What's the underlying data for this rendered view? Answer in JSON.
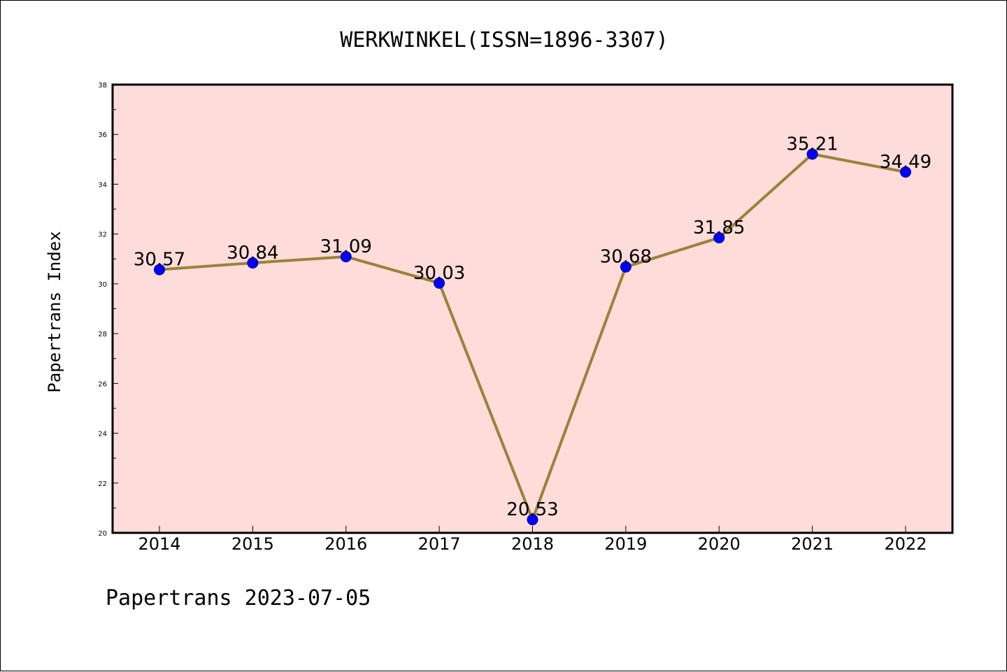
{
  "chart_data": {
    "type": "line",
    "title": "WERKWINKEL(ISSN=1896-3307)",
    "xlabel": "",
    "ylabel": "Papertrans Index",
    "categories": [
      "2014",
      "2015",
      "2016",
      "2017",
      "2018",
      "2019",
      "2020",
      "2021",
      "2022"
    ],
    "series": [
      {
        "values": [
          30.57,
          30.84,
          31.09,
          30.03,
          20.53,
          30.68,
          31.85,
          35.21,
          34.49
        ],
        "data_labels": [
          "30.57",
          "30.84",
          "31.09",
          "30.03",
          "20.53",
          "30.68",
          "31.85",
          "35.21",
          "34.49"
        ]
      }
    ],
    "ylim": [
      20,
      38
    ],
    "yticks": [
      20,
      22,
      24,
      26,
      28,
      30,
      32,
      34,
      36,
      38
    ],
    "ytick_labels": [
      "20",
      "22",
      "24",
      "26",
      "28",
      "30",
      "32",
      "34",
      "36",
      "38"
    ],
    "grid": false,
    "legend": "none",
    "colors": {
      "plot_background": "#fddcd9",
      "line": "#9a833a",
      "marker": "#0000ff",
      "marker_edge": "#00008b"
    },
    "footer": "Papertrans 2023-07-05"
  }
}
